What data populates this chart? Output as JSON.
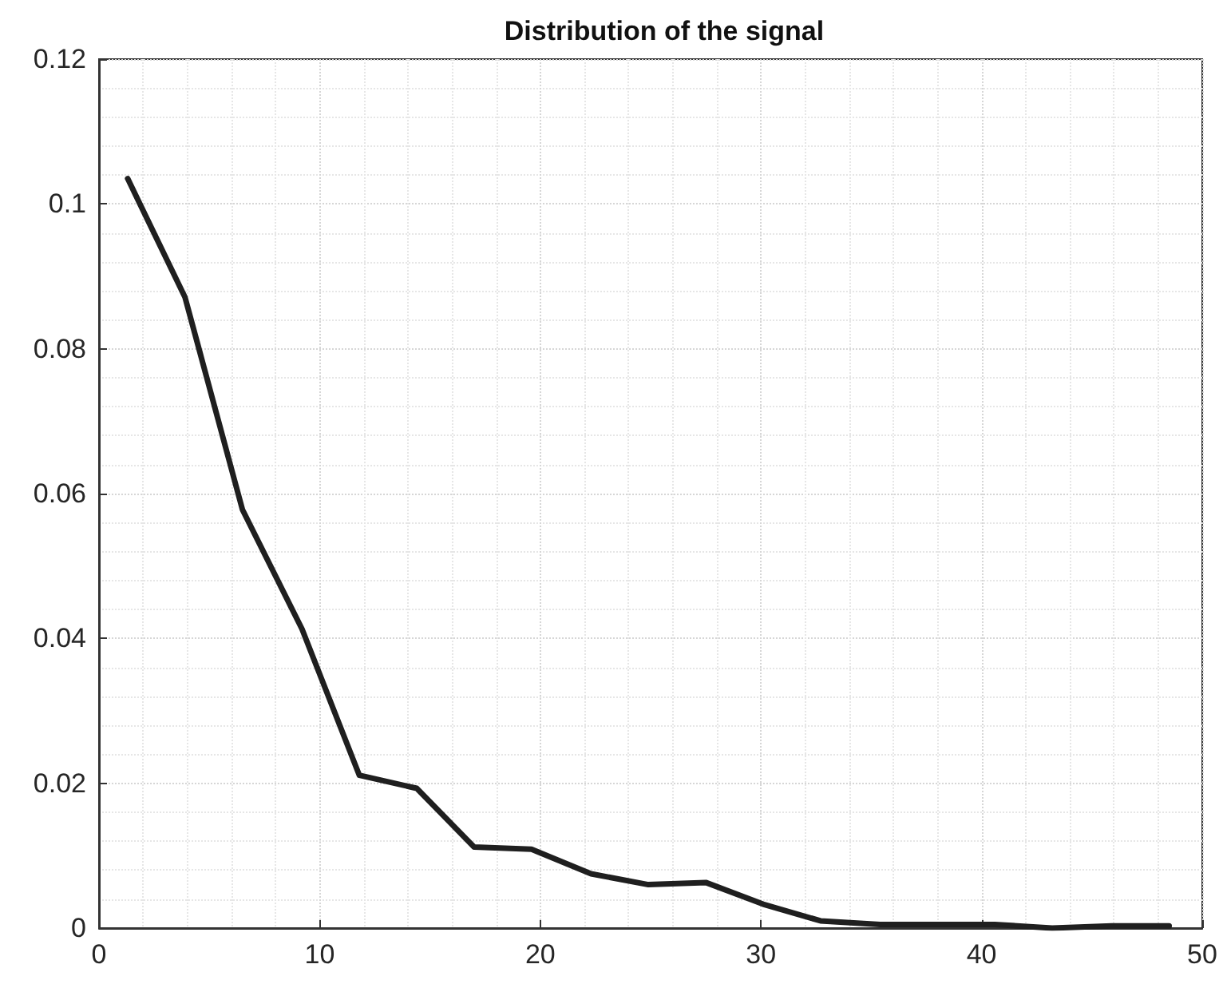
{
  "chart_data": {
    "type": "line",
    "title": "Distribution of the signal",
    "x": [
      1.3,
      3.9,
      6.5,
      9.2,
      11.8,
      14.4,
      17.0,
      19.6,
      22.3,
      24.9,
      27.5,
      30.1,
      32.7,
      35.4,
      38.0,
      40.6,
      43.2,
      45.9,
      48.5
    ],
    "series": [
      {
        "color": "#1f1f1f",
        "values": [
          0.1035,
          0.0871,
          0.0578,
          0.0413,
          0.0211,
          0.0193,
          0.0112,
          0.0109,
          0.0075,
          0.006,
          0.0063,
          0.0033,
          0.001,
          0.0005,
          0.0005,
          0.0005,
          0,
          0.0003,
          0.0003
        ]
      }
    ],
    "xlim": [
      0,
      50
    ],
    "xticks": [
      0,
      10,
      20,
      30,
      40,
      50
    ],
    "ylim": [
      0,
      0.12
    ],
    "yticks": [
      0,
      0.02,
      0.04,
      0.06,
      0.08,
      0.1,
      0.12
    ],
    "grid": true,
    "marker": "none",
    "line_style": "solid"
  }
}
